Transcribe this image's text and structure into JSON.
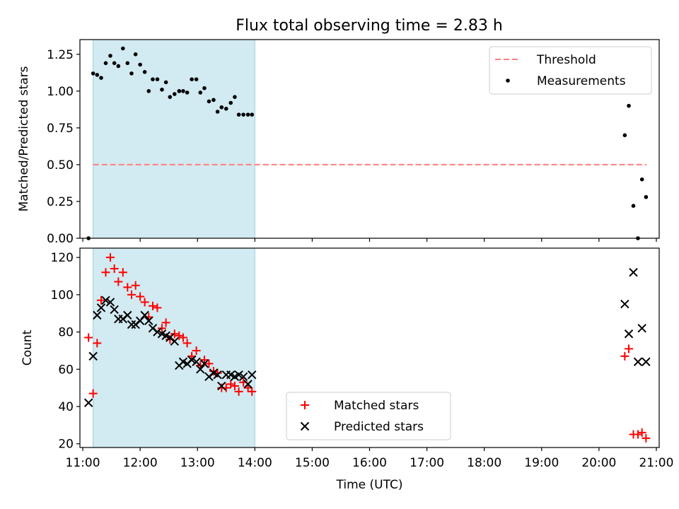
{
  "title": "Flux total observing time = 2.83 h",
  "colors": {
    "threshold": "#ff7f7f",
    "measurement": "#000000",
    "matched": "#ff0000",
    "predicted": "#000000",
    "observing_window": "#add8e6"
  },
  "chart_data": [
    {
      "type": "scatter",
      "panel": "top",
      "title": "Flux total observing time = 2.83 h",
      "xlabel": "",
      "ylabel": "Matched/Predicted stars",
      "xlim": [
        10.95,
        21.05
      ],
      "ylim": [
        0.0,
        1.35
      ],
      "yticks": [
        0.0,
        0.25,
        0.5,
        0.75,
        1.0,
        1.25
      ],
      "ytick_labels": [
        "0.00",
        "0.25",
        "0.50",
        "0.75",
        "1.00",
        "1.25"
      ],
      "shaded_region": [
        11.18,
        14.0
      ],
      "legend": {
        "position": "upper right",
        "entries": [
          {
            "label": "Threshold",
            "marker": "dashed-line"
          },
          {
            "label": "Measurements",
            "marker": "dot"
          }
        ]
      },
      "series": [
        {
          "name": "Threshold",
          "style": "dashed-line",
          "x": [
            11.18,
            20.83
          ],
          "y": [
            0.5,
            0.5
          ]
        },
        {
          "name": "Measurements",
          "style": "dot",
          "x": [
            11.1,
            11.18,
            11.25,
            11.32,
            11.4,
            11.48,
            11.55,
            11.62,
            11.7,
            11.78,
            11.85,
            11.92,
            12.0,
            12.08,
            12.15,
            12.22,
            12.3,
            12.38,
            12.45,
            12.52,
            12.6,
            12.68,
            12.75,
            12.82,
            12.9,
            12.98,
            13.05,
            13.12,
            13.2,
            13.28,
            13.35,
            13.42,
            13.5,
            13.58,
            13.65,
            13.72,
            13.8,
            13.88,
            13.95,
            20.45,
            20.52,
            20.6,
            20.68,
            20.75,
            20.82
          ],
          "y": [
            0.0,
            1.12,
            1.11,
            1.09,
            1.19,
            1.24,
            1.19,
            1.17,
            1.29,
            1.19,
            1.12,
            1.25,
            1.18,
            1.13,
            1.0,
            1.08,
            1.08,
            1.01,
            1.06,
            0.96,
            0.98,
            1.0,
            1.0,
            0.99,
            1.08,
            1.08,
            0.99,
            1.02,
            0.93,
            0.94,
            0.86,
            0.89,
            0.88,
            0.92,
            0.96,
            0.84,
            0.84,
            0.84,
            0.84,
            0.7,
            0.9,
            0.22,
            0.0,
            0.4,
            0.28
          ]
        }
      ]
    },
    {
      "type": "scatter",
      "panel": "bottom",
      "xlabel": "Time (UTC)",
      "ylabel": "Count",
      "xlim": [
        10.95,
        21.05
      ],
      "ylim": [
        18,
        125
      ],
      "xticks": [
        11,
        12,
        13,
        14,
        15,
        16,
        17,
        18,
        19,
        20,
        21
      ],
      "xtick_labels": [
        "11:00",
        "12:00",
        "13:00",
        "14:00",
        "15:00",
        "16:00",
        "17:00",
        "18:00",
        "19:00",
        "20:00",
        "21:00"
      ],
      "yticks": [
        20,
        40,
        60,
        80,
        100,
        120
      ],
      "ytick_labels": [
        "20",
        "40",
        "60",
        "80",
        "100",
        "120"
      ],
      "shaded_region": [
        11.18,
        14.0
      ],
      "legend": {
        "position": "lower center",
        "entries": [
          {
            "label": "Matched stars",
            "marker": "plus"
          },
          {
            "label": "Predicted stars",
            "marker": "x"
          }
        ]
      },
      "series": [
        {
          "name": "Matched stars",
          "style": "plus",
          "x": [
            11.1,
            11.18,
            11.25,
            11.32,
            11.4,
            11.48,
            11.55,
            11.62,
            11.7,
            11.78,
            11.85,
            11.92,
            12.0,
            12.08,
            12.15,
            12.22,
            12.3,
            12.38,
            12.45,
            12.52,
            12.6,
            12.68,
            12.75,
            12.82,
            12.9,
            12.98,
            13.05,
            13.12,
            13.2,
            13.28,
            13.35,
            13.42,
            13.5,
            13.58,
            13.65,
            13.72,
            13.8,
            13.88,
            13.95,
            20.45,
            20.52,
            20.6,
            20.68,
            20.75,
            20.82
          ],
          "y": [
            77,
            47,
            74,
            97,
            112,
            120,
            114,
            107,
            112,
            104,
            100,
            105,
            99,
            96,
            88,
            94,
            93,
            82,
            85,
            76,
            79,
            78,
            77,
            74,
            67,
            70,
            62,
            65,
            63,
            59,
            58,
            50,
            50,
            52,
            51,
            48,
            53,
            50,
            48,
            67,
            71,
            25,
            25,
            26,
            23
          ]
        },
        {
          "name": "Predicted stars",
          "style": "x",
          "x": [
            11.1,
            11.18,
            11.25,
            11.32,
            11.4,
            11.48,
            11.55,
            11.62,
            11.7,
            11.78,
            11.85,
            11.92,
            12.0,
            12.08,
            12.15,
            12.22,
            12.3,
            12.38,
            12.45,
            12.52,
            12.6,
            12.68,
            12.75,
            12.82,
            12.9,
            12.98,
            13.05,
            13.12,
            13.2,
            13.28,
            13.35,
            13.42,
            13.5,
            13.58,
            13.65,
            13.72,
            13.8,
            13.88,
            13.95,
            20.45,
            20.52,
            20.6,
            20.68,
            20.75,
            20.82
          ],
          "y": [
            42,
            67,
            89,
            93,
            97,
            96,
            92,
            87,
            87,
            89,
            84,
            84,
            86,
            89,
            86,
            82,
            80,
            79,
            78,
            77,
            75,
            62,
            64,
            63,
            65,
            64,
            60,
            63,
            56,
            58,
            57,
            51,
            57,
            57,
            56,
            57,
            56,
            52,
            57,
            95,
            79,
            112,
            64,
            82,
            64
          ]
        }
      ]
    }
  ]
}
